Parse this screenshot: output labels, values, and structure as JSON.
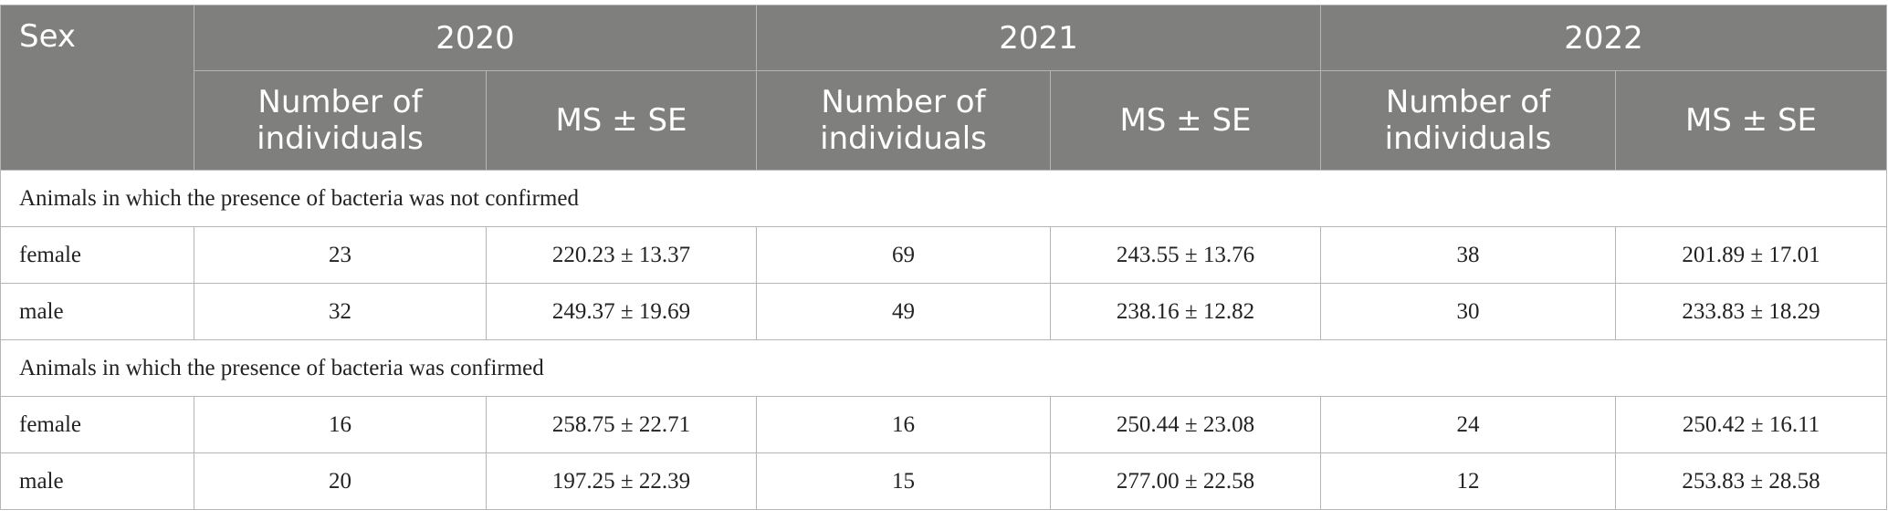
{
  "header": {
    "sex": "Sex",
    "years": [
      "2020",
      "2021",
      "2022"
    ],
    "columns": [
      "Number of individuals",
      "MS ± SE",
      "Number of individuals",
      "MS ± SE",
      "Number of individuals",
      "MS ± SE"
    ]
  },
  "sections": [
    {
      "title": "Animals in which the presence of bacteria was not confirmed",
      "rows": [
        {
          "sex": "female",
          "cells": [
            23,
            "220.23 ± 13.37",
            69,
            "243.55 ± 13.76",
            38,
            "201.89 ± 17.01"
          ]
        },
        {
          "sex": "male",
          "cells": [
            32,
            "249.37 ± 19.69",
            49,
            "238.16 ± 12.82",
            30,
            "233.83 ± 18.29"
          ]
        }
      ]
    },
    {
      "title": "Animals in which the presence of bacteria was confirmed",
      "rows": [
        {
          "sex": "female",
          "cells": [
            16,
            "258.75 ± 22.71",
            16,
            "250.44 ± 23.08",
            24,
            "250.42 ± 16.11"
          ]
        },
        {
          "sex": "male",
          "cells": [
            20,
            "197.25 ± 22.39",
            15,
            "277.00 ± 22.58",
            12,
            "253.83 ± 28.58"
          ]
        }
      ]
    }
  ]
}
